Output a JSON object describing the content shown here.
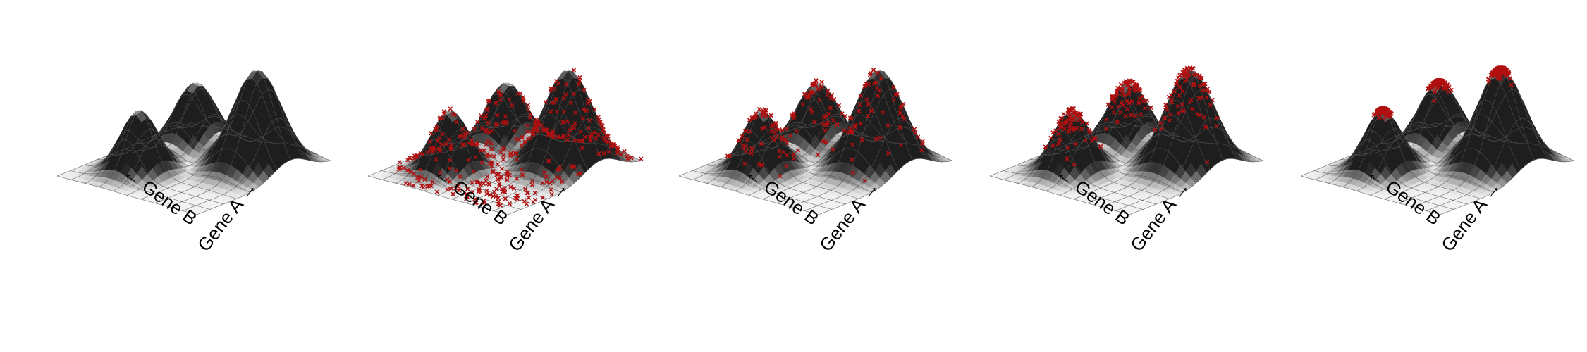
{
  "figure": {
    "panels": [
      {
        "id": "panel-1",
        "cells_per_peak": 0,
        "spread": 0.0
      },
      {
        "id": "panel-2",
        "cells_per_peak": 130,
        "spread": 1.0
      },
      {
        "id": "panel-3",
        "cells_per_peak": 60,
        "spread": 0.55
      },
      {
        "id": "panel-4",
        "cells_per_peak": 75,
        "spread": 0.35
      },
      {
        "id": "panel-5",
        "cells_per_peak": 120,
        "spread": 0.12
      }
    ],
    "axis_labels": {
      "gene_b": "← Gene B",
      "gene_a": "Gene A →"
    },
    "colors": {
      "surface_light": "#f2f2f2",
      "surface_dark": "#1e1e1e",
      "grid_line": "#555555",
      "cell_marker": "#b01010"
    }
  }
}
